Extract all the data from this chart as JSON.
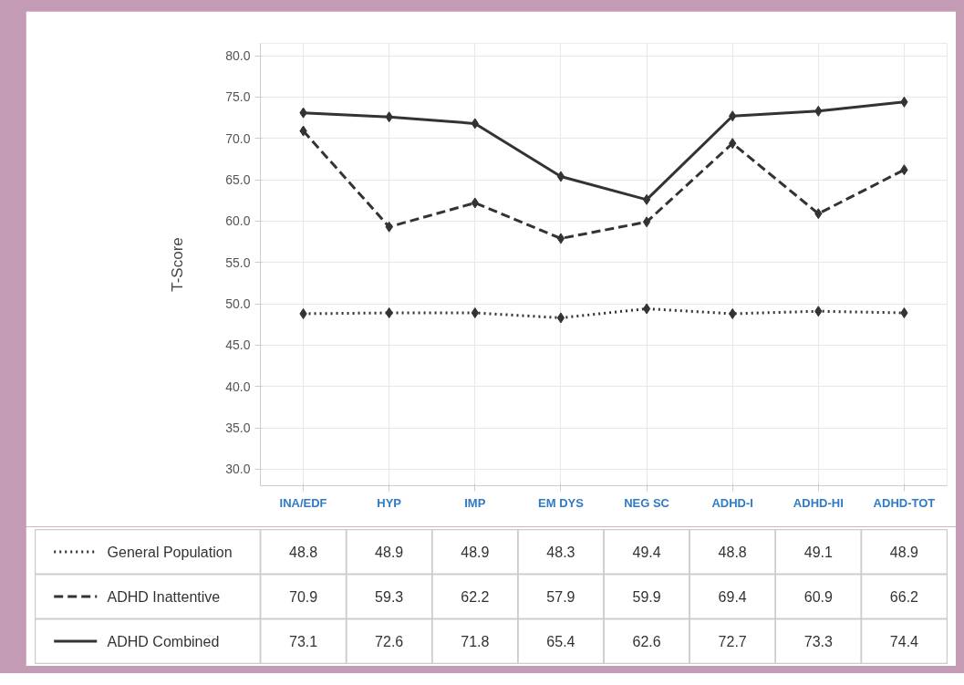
{
  "chart_data": {
    "type": "line",
    "ylabel": "T-Score",
    "categories": [
      "INA/EDF",
      "HYP",
      "IMP",
      "EM DYS",
      "NEG SC",
      "ADHD-I",
      "ADHD-HI",
      "ADHD-TOT"
    ],
    "series": [
      {
        "name": "General Population",
        "color": "#333333",
        "line_style": "dotted",
        "values": [
          48.8,
          48.9,
          48.9,
          48.3,
          49.4,
          48.8,
          49.1,
          48.9
        ]
      },
      {
        "name": "ADHD Inattentive",
        "color": "#333333",
        "line_style": "dashed",
        "values": [
          70.9,
          59.3,
          62.2,
          57.9,
          59.9,
          69.4,
          60.9,
          66.2
        ]
      },
      {
        "name": "ADHD Combined",
        "color": "#333333",
        "line_style": "solid",
        "values": [
          73.1,
          72.6,
          71.8,
          65.4,
          62.6,
          72.7,
          73.3,
          74.4
        ]
      }
    ],
    "marker": "diamond",
    "legend": "bottom",
    "data_labels": true,
    "grid": true,
    "ylim": [
      28,
      81.5
    ],
    "yticks": [
      {
        "value": 30,
        "label": "30.0"
      },
      {
        "value": 35,
        "label": "35.0"
      },
      {
        "value": 40,
        "label": "40.0"
      },
      {
        "value": 45,
        "label": "45.0"
      },
      {
        "value": 50,
        "label": "50.0"
      },
      {
        "value": 55,
        "label": "55.0"
      },
      {
        "value": 60,
        "label": "60.0"
      },
      {
        "value": 65,
        "label": "65.0"
      },
      {
        "value": 70,
        "label": "70.0"
      },
      {
        "value": 75,
        "label": "75.0"
      },
      {
        "value": 80,
        "label": "80.0"
      }
    ]
  }
}
